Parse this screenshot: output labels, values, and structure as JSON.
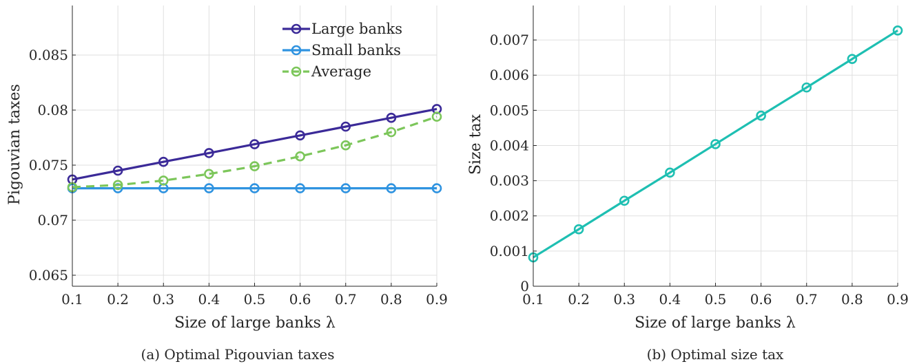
{
  "chart_data": [
    {
      "type": "line",
      "caption": "(a) Optimal Pigouvian taxes",
      "xlabel": "Size of large banks λ",
      "ylabel": "Pigouvian taxes",
      "x": [
        0.1,
        0.2,
        0.3,
        0.4,
        0.5,
        0.6,
        0.7,
        0.8,
        0.9
      ],
      "xlim": [
        0.1,
        0.9
      ],
      "ylim": [
        0.064,
        0.0895
      ],
      "xticks": [
        "0.1",
        "0.2",
        "0.3",
        "0.4",
        "0.5",
        "0.6",
        "0.7",
        "0.8",
        "0.9"
      ],
      "yticks": [
        {
          "value": 0.065,
          "label": "0.065"
        },
        {
          "value": 0.07,
          "label": "0.07"
        },
        {
          "value": 0.075,
          "label": "0.075"
        },
        {
          "value": 0.08,
          "label": "0.08"
        },
        {
          "value": 0.085,
          "label": "0.085"
        }
      ],
      "grid": true,
      "legend_position": "top-right",
      "series": [
        {
          "name": "Large banks",
          "color": "#3b2a98",
          "style": "solid",
          "values": [
            0.0737,
            0.0745,
            0.0753,
            0.0761,
            0.0769,
            0.0777,
            0.0785,
            0.0793,
            0.0801
          ]
        },
        {
          "name": "Small banks",
          "color": "#2f93e0",
          "style": "solid",
          "values": [
            0.0729,
            0.0729,
            0.0729,
            0.0729,
            0.0729,
            0.0729,
            0.0729,
            0.0729,
            0.0729
          ]
        },
        {
          "name": "Average",
          "color": "#7cc65a",
          "style": "dashed",
          "values": [
            0.073,
            0.0732,
            0.0736,
            0.0742,
            0.0749,
            0.0758,
            0.0768,
            0.078,
            0.0794
          ]
        }
      ]
    },
    {
      "type": "line",
      "caption": "(b) Optimal size tax",
      "xlabel": "Size of large banks λ",
      "ylabel": "Size tax",
      "x": [
        0.1,
        0.2,
        0.3,
        0.4,
        0.5,
        0.6,
        0.7,
        0.8,
        0.9
      ],
      "xlim": [
        0.1,
        0.9
      ],
      "ylim": [
        0,
        0.00798
      ],
      "xticks": [
        "0.1",
        "0.2",
        "0.3",
        "0.4",
        "0.5",
        "0.6",
        "0.7",
        "0.8",
        "0.9"
      ],
      "yticks": [
        {
          "value": 0,
          "label": "0"
        },
        {
          "value": 0.001,
          "label": "0.001"
        },
        {
          "value": 0.002,
          "label": "0.002"
        },
        {
          "value": 0.003,
          "label": "0.003"
        },
        {
          "value": 0.004,
          "label": "0.004"
        },
        {
          "value": 0.005,
          "label": "0.005"
        },
        {
          "value": 0.006,
          "label": "0.006"
        },
        {
          "value": 0.007,
          "label": "0.007"
        }
      ],
      "grid": true,
      "series": [
        {
          "color": "#1ebfb2",
          "style": "solid",
          "values": [
            0.00082,
            0.00162,
            0.00243,
            0.00323,
            0.00404,
            0.00485,
            0.00565,
            0.00646,
            0.00727
          ]
        }
      ]
    }
  ]
}
